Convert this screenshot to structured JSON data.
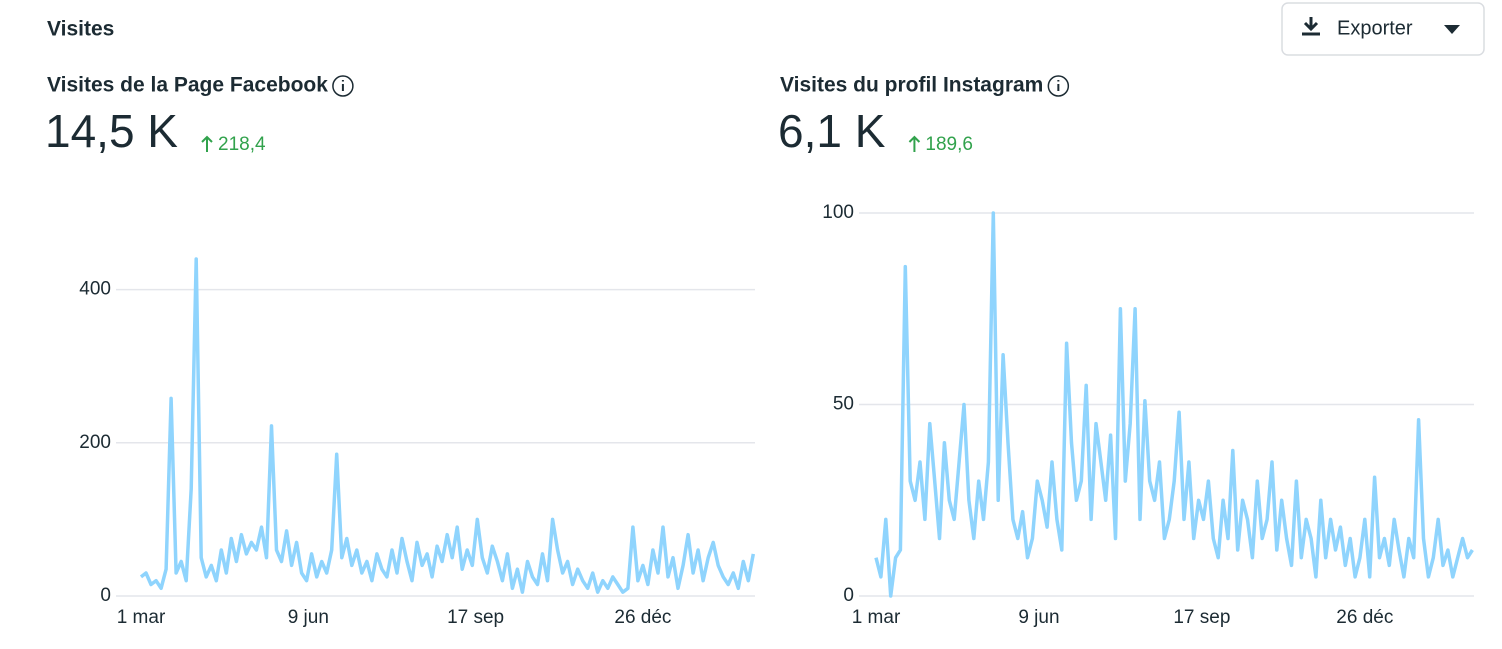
{
  "header": {
    "title": "Visites",
    "export_button": "Exporter"
  },
  "chart_data": [
    {
      "type": "line",
      "title": "Visites de la Page Facebook",
      "total": "14,5 K",
      "change": "218,4",
      "color": "#8fd4fd",
      "x": [
        0,
        3,
        6,
        9,
        12,
        15,
        18,
        21,
        24,
        27,
        30,
        33,
        36,
        39,
        42,
        45,
        48,
        51,
        54,
        57,
        60,
        63,
        66,
        69,
        72,
        75,
        78,
        81,
        84,
        87,
        90,
        93,
        96,
        99,
        102,
        105,
        108,
        111,
        114,
        117,
        120,
        123,
        126,
        129,
        132,
        135,
        138,
        141,
        144,
        147,
        150,
        153,
        156,
        159,
        162,
        165,
        168,
        171,
        174,
        177,
        180,
        183,
        186,
        189,
        192,
        195,
        198,
        201,
        204,
        207,
        210,
        213,
        216,
        219,
        222,
        225,
        228,
        231,
        234,
        237,
        240,
        243,
        246,
        249,
        252,
        255,
        258,
        261,
        264,
        267,
        270,
        273,
        276,
        279,
        282,
        285,
        288,
        291,
        294,
        297,
        300,
        303,
        306,
        309,
        312,
        315,
        318,
        321,
        324,
        327,
        330,
        333,
        336,
        339,
        342,
        345,
        348,
        351,
        354,
        357,
        360,
        363,
        366
      ],
      "values": [
        25,
        30,
        15,
        20,
        10,
        35,
        258,
        30,
        45,
        20,
        140,
        440,
        50,
        25,
        40,
        20,
        60,
        30,
        75,
        45,
        80,
        55,
        70,
        60,
        90,
        50,
        222,
        60,
        45,
        85,
        40,
        70,
        30,
        20,
        55,
        25,
        45,
        30,
        60,
        185,
        50,
        75,
        40,
        60,
        30,
        45,
        20,
        55,
        35,
        25,
        60,
        30,
        75,
        45,
        20,
        70,
        40,
        55,
        25,
        65,
        45,
        80,
        50,
        90,
        35,
        60,
        40,
        100,
        50,
        30,
        65,
        45,
        20,
        55,
        10,
        35,
        5,
        45,
        25,
        15,
        55,
        20,
        100,
        60,
        30,
        45,
        15,
        35,
        20,
        10,
        30,
        5,
        20,
        10,
        25,
        15,
        5,
        10,
        90,
        20,
        40,
        15,
        60,
        30,
        90,
        25,
        50,
        10,
        40,
        80,
        30,
        60,
        20,
        50,
        70,
        40,
        25,
        15,
        30,
        10,
        45,
        20,
        55
      ],
      "xlim": [
        0,
        367
      ],
      "ylim": [
        0,
        500
      ],
      "yticks": [
        0,
        200,
        400
      ],
      "xticks": [
        {
          "value": 0,
          "label": "1 mar"
        },
        {
          "value": 100,
          "label": "9 jun"
        },
        {
          "value": 200,
          "label": "17 sep"
        },
        {
          "value": 300,
          "label": "26 déc"
        }
      ],
      "grid": true
    },
    {
      "type": "line",
      "title": "Visites du profil Instagram",
      "total": "6,1 K",
      "change": "189,6",
      "color": "#8fd4fd",
      "x": [
        0,
        3,
        6,
        9,
        12,
        15,
        18,
        21,
        24,
        27,
        30,
        33,
        36,
        39,
        42,
        45,
        48,
        51,
        54,
        57,
        60,
        63,
        66,
        69,
        72,
        75,
        78,
        81,
        84,
        87,
        90,
        93,
        96,
        99,
        102,
        105,
        108,
        111,
        114,
        117,
        120,
        123,
        126,
        129,
        132,
        135,
        138,
        141,
        144,
        147,
        150,
        153,
        156,
        159,
        162,
        165,
        168,
        171,
        174,
        177,
        180,
        183,
        186,
        189,
        192,
        195,
        198,
        201,
        204,
        207,
        210,
        213,
        216,
        219,
        222,
        225,
        228,
        231,
        234,
        237,
        240,
        243,
        246,
        249,
        252,
        255,
        258,
        261,
        264,
        267,
        270,
        273,
        276,
        279,
        282,
        285,
        288,
        291,
        294,
        297,
        300,
        303,
        306,
        309,
        312,
        315,
        318,
        321,
        324,
        327,
        330,
        333,
        336,
        339,
        342,
        345,
        348,
        351,
        354,
        357,
        360,
        363,
        366
      ],
      "values": [
        10,
        5,
        20,
        0,
        10,
        12,
        86,
        30,
        25,
        35,
        20,
        45,
        30,
        15,
        40,
        25,
        20,
        35,
        50,
        25,
        15,
        30,
        20,
        35,
        100,
        25,
        63,
        40,
        20,
        15,
        22,
        10,
        15,
        30,
        25,
        18,
        35,
        20,
        12,
        66,
        40,
        25,
        30,
        55,
        20,
        45,
        35,
        25,
        42,
        15,
        75,
        30,
        45,
        75,
        20,
        51,
        30,
        25,
        35,
        15,
        20,
        30,
        48,
        20,
        35,
        15,
        25,
        20,
        30,
        15,
        10,
        25,
        15,
        38,
        12,
        25,
        20,
        10,
        30,
        15,
        20,
        35,
        12,
        25,
        15,
        8,
        30,
        10,
        20,
        15,
        5,
        25,
        10,
        20,
        12,
        18,
        8,
        15,
        5,
        10,
        20,
        5,
        31,
        10,
        15,
        8,
        20,
        12,
        5,
        15,
        10,
        46,
        15,
        5,
        10,
        20,
        8,
        12,
        5,
        10,
        15,
        10,
        12
      ],
      "xlim": [
        0,
        367
      ],
      "ylim": [
        0,
        100
      ],
      "yticks": [
        0,
        50,
        100
      ],
      "xticks": [
        {
          "value": 0,
          "label": "1 mar"
        },
        {
          "value": 100,
          "label": "9 jun"
        },
        {
          "value": 200,
          "label": "17 sep"
        },
        {
          "value": 300,
          "label": "26 déc"
        }
      ],
      "grid": true
    }
  ]
}
